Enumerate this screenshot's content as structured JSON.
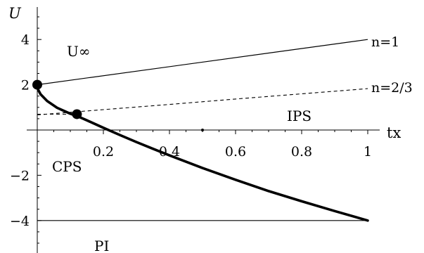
{
  "chart_data": {
    "type": "line",
    "title": "",
    "xlabel": "tx",
    "ylabel": "U",
    "xlim": [
      0,
      1
    ],
    "ylim": [
      -5,
      5
    ],
    "grid": false,
    "x_ticks": [
      "0.2",
      "0.4",
      "0.6",
      "0.8",
      "1"
    ],
    "y_ticks": [
      "4",
      "2",
      "−2",
      "−4"
    ],
    "series": [
      {
        "name": "n=1",
        "style": "thin-solid",
        "x": [
          0,
          1
        ],
        "y": [
          2,
          4
        ]
      },
      {
        "name": "n=2/3",
        "style": "dashed",
        "x": [
          0,
          0.2,
          0.4,
          0.6,
          0.8,
          1
        ],
        "y": [
          0.667,
          0.9,
          1.13,
          1.37,
          1.6,
          1.83
        ]
      },
      {
        "name": "",
        "style": "dashed-horizontal",
        "x": [
          0,
          0.12
        ],
        "y": [
          0.7,
          0.7
        ]
      },
      {
        "name": "",
        "style": "thick-solid",
        "x": [
          0,
          0.002,
          0.01,
          0.03,
          0.06,
          0.1,
          0.12,
          0.15,
          0.2,
          0.25,
          0.3,
          0.35,
          0.4,
          0.5,
          0.6,
          0.7,
          0.8,
          0.9,
          1.0
        ],
        "y": [
          2.0,
          1.8,
          1.58,
          1.28,
          0.98,
          0.72,
          0.62,
          0.43,
          0.1,
          -0.22,
          -0.53,
          -0.83,
          -1.12,
          -1.68,
          -2.2,
          -2.7,
          -3.15,
          -3.58,
          -4.0
        ]
      },
      {
        "name": "",
        "style": "thin-solid",
        "x": [
          0,
          1
        ],
        "y": [
          -4,
          -4
        ]
      }
    ],
    "points": [
      {
        "x": 0,
        "y": 2
      },
      {
        "x": 0.12,
        "y": 0.7
      }
    ],
    "markers": [
      {
        "x": 0.5,
        "y": 0
      }
    ],
    "labels": {
      "region_uinf": "U∞",
      "region_ips": "IPS",
      "region_cps": "CPS",
      "region_pi": "PI",
      "series_n1": "n=1",
      "series_n23": "n=2/3"
    }
  }
}
